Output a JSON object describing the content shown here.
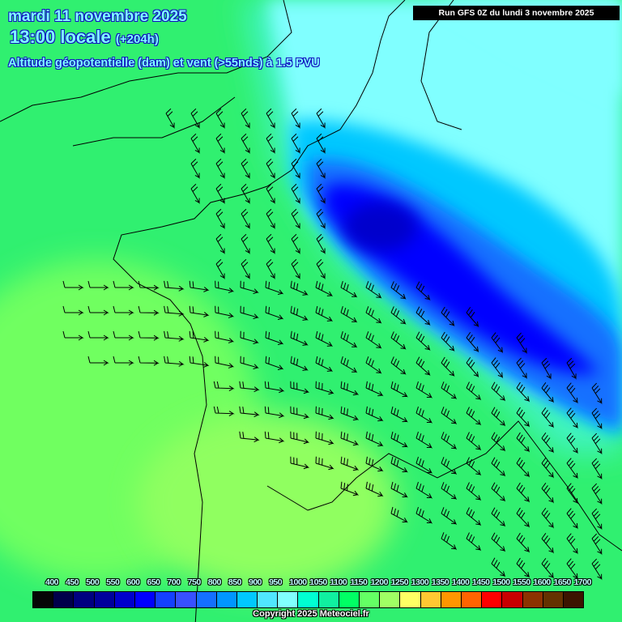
{
  "header": {
    "date": "mardi 11 novembre 2025",
    "time": "13:00 locale",
    "lead": "(+204h)",
    "parameter": "Altitude géopotentielle (dam) et vent (>55nds) à 1.5 PVU",
    "run": "Run GFS 0Z du lundi 3 novembre 2025"
  },
  "legend": {
    "items": [
      {
        "label": "400",
        "color": "#060606"
      },
      {
        "label": "450",
        "color": "#00004a"
      },
      {
        "label": "500",
        "color": "#000080"
      },
      {
        "label": "550",
        "color": "#00009c"
      },
      {
        "label": "600",
        "color": "#0000cc"
      },
      {
        "label": "650",
        "color": "#0000ff"
      },
      {
        "label": "700",
        "color": "#1440ff"
      },
      {
        "label": "750",
        "color": "#3850ff"
      },
      {
        "label": "800",
        "color": "#1470ff"
      },
      {
        "label": "850",
        "color": "#0096ff"
      },
      {
        "label": "900",
        "color": "#00c8ff"
      },
      {
        "label": "950",
        "color": "#50e6ff"
      },
      {
        "label": "1000",
        "color": "#80ffff"
      },
      {
        "label": "1050",
        "color": "#00ffd2"
      },
      {
        "label": "1100",
        "color": "#10f0a0"
      },
      {
        "label": "1150",
        "color": "#00ff64"
      },
      {
        "label": "1200",
        "color": "#64ff64"
      },
      {
        "label": "1250",
        "color": "#a0ff64"
      },
      {
        "label": "1300",
        "color": "#ffff64"
      },
      {
        "label": "1350",
        "color": "#ffc832"
      },
      {
        "label": "1400",
        "color": "#ff9600"
      },
      {
        "label": "1450",
        "color": "#ff6400"
      },
      {
        "label": "1500",
        "color": "#ff0000"
      },
      {
        "label": "1550",
        "color": "#c80000"
      },
      {
        "label": "1600",
        "color": "#8c3200"
      },
      {
        "label": "1650",
        "color": "#643200"
      },
      {
        "label": "1700",
        "color": "#3c1400"
      }
    ]
  },
  "copyright": "Copyright 2025 Meteociel.fr"
}
